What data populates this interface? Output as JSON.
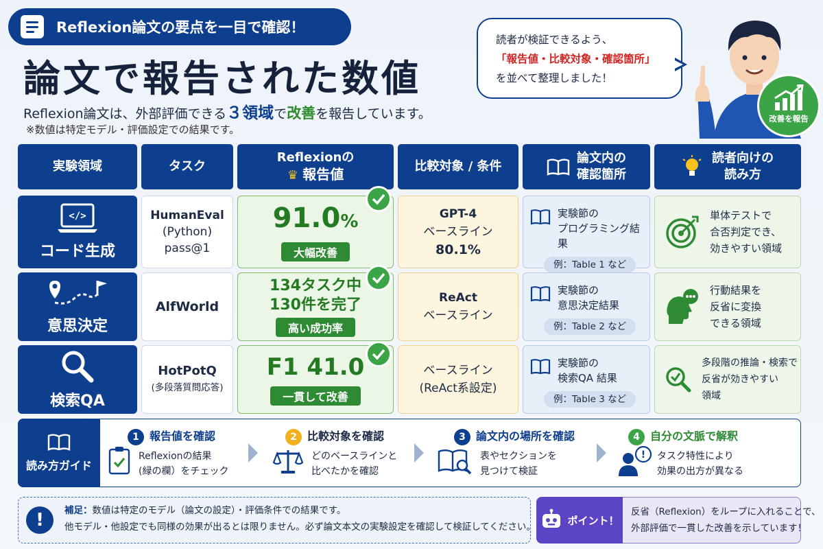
{
  "header": {
    "pill": "Reflexion論文の要点を一目で確認！",
    "title": "論文で報告された数値",
    "subtitle_pre": "Reflexion論文は、外部評価できる",
    "subtitle_em1": "３領域",
    "subtitle_mid": "で",
    "subtitle_em2": "改善",
    "subtitle_post": "を報告しています。",
    "note": "※数値は特定モデル・評価設定での結果です。"
  },
  "bubble": {
    "line1": "読者が検証できるよう、",
    "line2": "「報告値・比較対象・確認箇所」",
    "line3": "を並べて整理しました！"
  },
  "badge": "改善を報告",
  "table": {
    "headers": {
      "area": "実験領域",
      "task": "タスク",
      "value_l1": "Reflexionの",
      "value_l2": "報告値",
      "compare": "比較対象 / 条件",
      "location_l1": "論文内の",
      "location_l2": "確認箇所",
      "reading_l1": "読者向けの",
      "reading_l2": "読み方"
    },
    "rows": [
      {
        "area": "コード生成",
        "task_l1": "HumanEval",
        "task_l2": "(Python)",
        "task_l3": "pass@1",
        "value_main": "91.0",
        "value_unit": "%",
        "value_tag": "大幅改善",
        "compare_l1": "GPT-4",
        "compare_l2": "ベースライン",
        "compare_l3": "80.1%",
        "location_l1": "実験節の",
        "location_l2": "プログラミング結果",
        "location_ex": "例：Table 1 など",
        "reading_l1": "単体テストで",
        "reading_l2": "合否判定でき、",
        "reading_l3": "効きやすい領域"
      },
      {
        "area": "意思決定",
        "task_l1": "AlfWorld",
        "value_l1": "134タスク中",
        "value_l2": "130件を完了",
        "value_tag": "高い成功率",
        "compare_l1": "ReAct",
        "compare_l2": "ベースライン",
        "location_l1": "実験節の",
        "location_l2": "意思決定結果",
        "location_ex": "例：Table 2 など",
        "reading_l1": "行動結果を",
        "reading_l2": "反省に変換",
        "reading_l3": "できる領域"
      },
      {
        "area": "検索QA",
        "task_l1": "HotPotQ",
        "task_l2": "(多段落質問応答)",
        "value_main": "F1 41.0",
        "value_tag": "一貫して改善",
        "compare_l1": "ベースライン",
        "compare_l2": "(ReAct系設定)",
        "location_l1": "実験節の",
        "location_l2": "検索QA 結果",
        "location_ex": "例：Table 3 など",
        "reading_l1": "多段階の推論・検索で",
        "reading_l2": "反省が効きやすい",
        "reading_l3": "領域"
      }
    ]
  },
  "guide": {
    "label": "読み方ガイド",
    "steps": [
      {
        "num": "1",
        "title": "報告値を確認",
        "d1": "Reflexionの結果",
        "d2": "(緑の欄）をチェック",
        "color": "#0e3f8f"
      },
      {
        "num": "2",
        "title": "比較対象を確認",
        "d1": "どのベースラインと",
        "d2": "比べたかを確認",
        "color": "#f2b01e"
      },
      {
        "num": "3",
        "title": "論文内の場所を確認",
        "d1": "表やセクションを",
        "d2": "見つけて検証",
        "color": "#0e3f8f"
      },
      {
        "num": "4",
        "title": "自分の文脈で解釈",
        "d1": "タスク特性により",
        "d2": "効果の出方が異なる",
        "color": "#3aa446"
      }
    ]
  },
  "footer": {
    "note_label": "補足：",
    "note_l1": "数値は特定のモデル（論文の設定）・評価条件での結果です。",
    "note_l2": "他モデル・他設定でも同様の効果が出るとは限りません。必ず論文本文の実験設定を確認して検証してください。",
    "point_label": "ポイント！",
    "point_l1": "反省（Reflexion）をループに入れることで、",
    "point_l2": "外部評価で一貫した改善を示しています！"
  }
}
